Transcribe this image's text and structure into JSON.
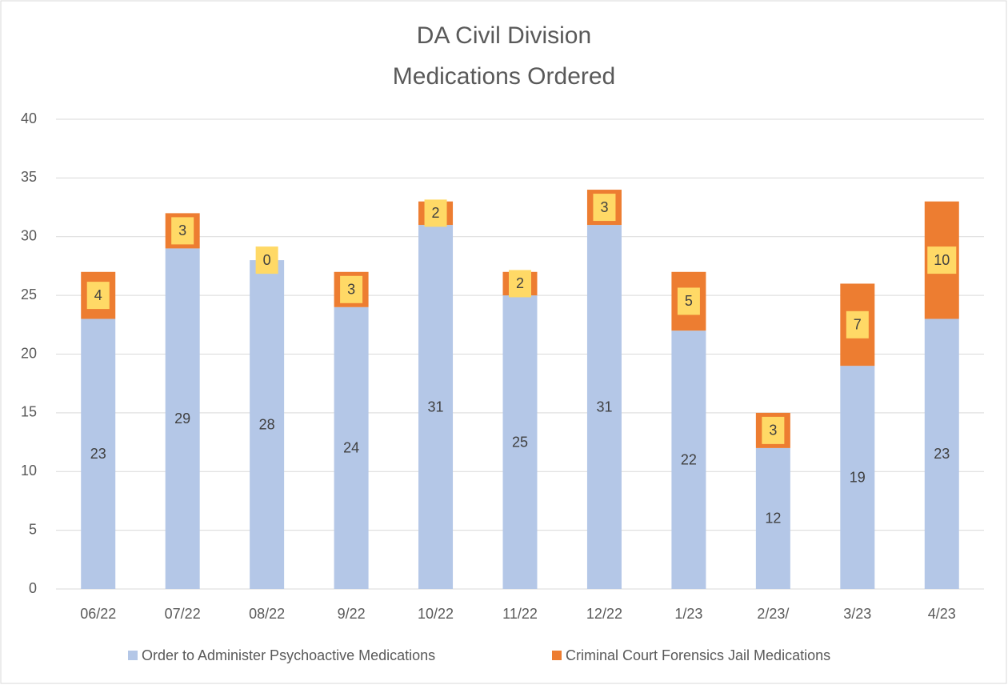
{
  "chart_data": {
    "type": "stacked_bar",
    "title": [
      "DA Civil Division",
      "Medications Ordered"
    ],
    "categories": [
      "06/22",
      "07/22",
      "08/22",
      "9/22",
      "10/22",
      "11/22",
      "12/22",
      "1/23",
      "2/23/",
      "3/23",
      "4/23"
    ],
    "series": [
      {
        "name": "Order to Administer Psychoactive Medications",
        "color": "#b4c7e7",
        "values": [
          23,
          29,
          28,
          24,
          31,
          25,
          31,
          22,
          12,
          19,
          23
        ]
      },
      {
        "name": "Criminal Court Forensics Jail Medications",
        "color": "#ed7d31",
        "values": [
          4,
          3,
          0,
          3,
          2,
          2,
          3,
          5,
          3,
          7,
          10
        ]
      }
    ],
    "ylim": [
      0,
      40
    ],
    "yticks": [
      0,
      5,
      10,
      15,
      20,
      25,
      30,
      35,
      40
    ],
    "grid": true,
    "legend": "bottom"
  }
}
